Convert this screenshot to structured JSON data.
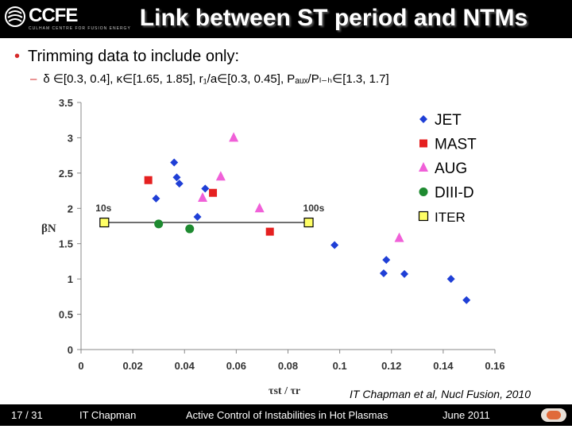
{
  "header": {
    "logo_text": "CCFE",
    "logo_sub": "CULHAM CENTRE FOR FUSION ENERGY",
    "title": "Link between ST period and NTMs"
  },
  "bullets": {
    "main": "Trimming data to include only:",
    "sub": "δ ∈[0.3, 0.4], κ∈[1.65, 1.85], r₁/a∈[0.3, 0.45], Pₐᵤₓ/Pₗ₋ₕ∈[1.3, 1.7]"
  },
  "chart_data": {
    "type": "scatter",
    "title": "",
    "xlabel": "τst / τr",
    "ylabel": "βN",
    "xlim": [
      0,
      0.16
    ],
    "ylim": [
      0,
      3.5
    ],
    "xticks": [
      0,
      0.02,
      0.04,
      0.06,
      0.08,
      0.1,
      0.12,
      0.14,
      0.16
    ],
    "yticks": [
      0,
      0.5,
      1,
      1.5,
      2,
      2.5,
      3,
      3.5
    ],
    "grid": false,
    "legend_position": "top-right",
    "series": [
      {
        "name": "JET",
        "marker": "diamond",
        "color": "#1f3fd6",
        "x": [
          0.029,
          0.036,
          0.037,
          0.038,
          0.048,
          0.045,
          0.098,
          0.118,
          0.117,
          0.125,
          0.143,
          0.149
        ],
        "y": [
          2.14,
          2.65,
          2.44,
          2.35,
          2.28,
          1.88,
          1.48,
          1.27,
          1.08,
          1.07,
          1.0,
          0.7
        ]
      },
      {
        "name": "MAST",
        "marker": "square",
        "color": "#e52020",
        "x": [
          0.026,
          0.051,
          0.073
        ],
        "y": [
          2.4,
          2.22,
          1.67
        ]
      },
      {
        "name": "AUG",
        "marker": "triangle",
        "color": "#f060d8",
        "x": [
          0.059,
          0.047,
          0.054,
          0.069,
          0.123
        ],
        "y": [
          3.0,
          2.15,
          2.45,
          2.0,
          1.58
        ]
      },
      {
        "name": "DIII-D",
        "marker": "circle",
        "color": "#1e8a30",
        "x": [
          0.03,
          0.042
        ],
        "y": [
          1.78,
          1.71
        ]
      },
      {
        "name": "ITER",
        "marker": "square-outline",
        "color": "#ffff66",
        "x": [
          0.009,
          0.088
        ],
        "y": [
          1.8,
          1.8
        ],
        "labels": [
          "10s",
          "100s"
        ]
      }
    ]
  },
  "citation": "IT Chapman et al, Nucl Fusion, 2010",
  "footer": {
    "page": "17 / 31",
    "author": "IT Chapman",
    "talk": "Active Control of Instabilities in Hot Plasmas",
    "date": "June 2011"
  }
}
